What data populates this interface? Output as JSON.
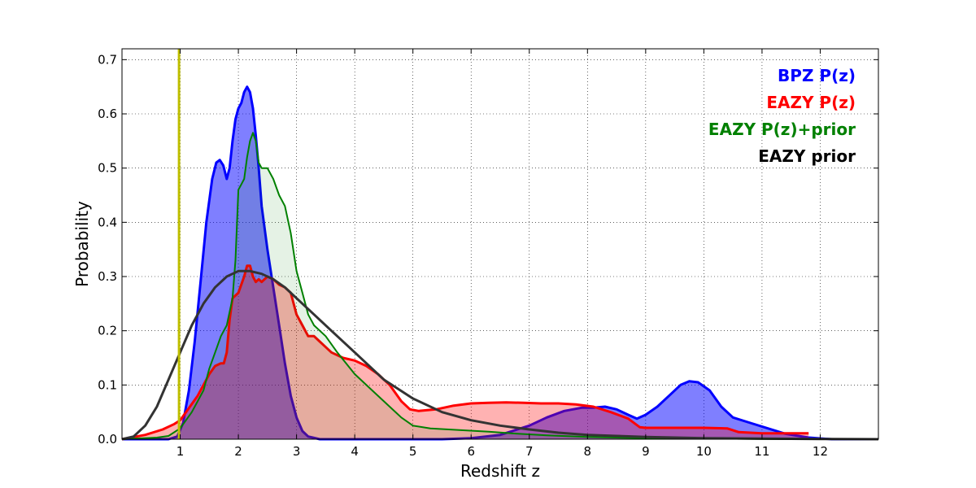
{
  "chart_data": {
    "type": "area",
    "xlabel": "Redshift z",
    "ylabel": "Probability",
    "xlim": [
      0,
      13
    ],
    "ylim": [
      0,
      0.72
    ],
    "xticks": [
      1,
      2,
      3,
      4,
      5,
      6,
      7,
      8,
      9,
      10,
      11,
      12
    ],
    "yticks": [
      0.0,
      0.1,
      0.2,
      0.3,
      0.4,
      0.5,
      0.6,
      0.7
    ],
    "ytick_labels": [
      "0.0",
      "0.1",
      "0.2",
      "0.3",
      "0.4",
      "0.5",
      "0.6",
      "0.7"
    ],
    "grid": true,
    "legend_position": "top-right",
    "vertical_marker": {
      "x": 0.98,
      "color": "#bfbf00"
    },
    "series": [
      {
        "name": "BPZ P(z)",
        "color": "#0000ff",
        "fill": "#0000ff",
        "fill_opacity": 0.5,
        "line_width": 3,
        "points": [
          [
            0,
            0
          ],
          [
            0.8,
            0
          ],
          [
            0.95,
            0.005
          ],
          [
            1.05,
            0.03
          ],
          [
            1.15,
            0.09
          ],
          [
            1.25,
            0.18
          ],
          [
            1.35,
            0.29
          ],
          [
            1.45,
            0.4
          ],
          [
            1.55,
            0.48
          ],
          [
            1.62,
            0.51
          ],
          [
            1.68,
            0.515
          ],
          [
            1.74,
            0.505
          ],
          [
            1.8,
            0.48
          ],
          [
            1.85,
            0.5
          ],
          [
            1.9,
            0.55
          ],
          [
            1.95,
            0.59
          ],
          [
            2.0,
            0.61
          ],
          [
            2.05,
            0.62
          ],
          [
            2.1,
            0.64
          ],
          [
            2.15,
            0.65
          ],
          [
            2.2,
            0.64
          ],
          [
            2.25,
            0.61
          ],
          [
            2.3,
            0.56
          ],
          [
            2.35,
            0.5
          ],
          [
            2.4,
            0.43
          ],
          [
            2.5,
            0.35
          ],
          [
            2.6,
            0.28
          ],
          [
            2.7,
            0.21
          ],
          [
            2.8,
            0.14
          ],
          [
            2.9,
            0.08
          ],
          [
            3.0,
            0.04
          ],
          [
            3.1,
            0.015
          ],
          [
            3.2,
            0.005
          ],
          [
            3.4,
            0
          ],
          [
            5.5,
            0
          ],
          [
            6.0,
            0.002
          ],
          [
            6.5,
            0.008
          ],
          [
            7.0,
            0.025
          ],
          [
            7.3,
            0.04
          ],
          [
            7.6,
            0.052
          ],
          [
            7.9,
            0.058
          ],
          [
            8.1,
            0.058
          ],
          [
            8.3,
            0.06
          ],
          [
            8.5,
            0.055
          ],
          [
            8.7,
            0.045
          ],
          [
            8.85,
            0.038
          ],
          [
            9.0,
            0.045
          ],
          [
            9.2,
            0.06
          ],
          [
            9.4,
            0.08
          ],
          [
            9.6,
            0.1
          ],
          [
            9.75,
            0.107
          ],
          [
            9.9,
            0.105
          ],
          [
            10.1,
            0.09
          ],
          [
            10.3,
            0.06
          ],
          [
            10.5,
            0.04
          ],
          [
            10.8,
            0.03
          ],
          [
            11.1,
            0.02
          ],
          [
            11.4,
            0.01
          ],
          [
            11.8,
            0.003
          ],
          [
            12.2,
            0
          ],
          [
            13,
            0
          ]
        ]
      },
      {
        "name": "EAZY P(z)",
        "color": "#ff0000",
        "fill": "#ff0000",
        "fill_opacity": 0.3,
        "line_width": 3,
        "points": [
          [
            0,
            0
          ],
          [
            0.4,
            0.008
          ],
          [
            0.7,
            0.018
          ],
          [
            0.9,
            0.028
          ],
          [
            1.0,
            0.035
          ],
          [
            1.1,
            0.05
          ],
          [
            1.2,
            0.065
          ],
          [
            1.3,
            0.08
          ],
          [
            1.4,
            0.1
          ],
          [
            1.5,
            0.12
          ],
          [
            1.6,
            0.135
          ],
          [
            1.7,
            0.14
          ],
          [
            1.75,
            0.14
          ],
          [
            1.8,
            0.16
          ],
          [
            1.85,
            0.22
          ],
          [
            1.9,
            0.26
          ],
          [
            2.0,
            0.27
          ],
          [
            2.1,
            0.3
          ],
          [
            2.15,
            0.32
          ],
          [
            2.2,
            0.32
          ],
          [
            2.25,
            0.3
          ],
          [
            2.3,
            0.29
          ],
          [
            2.35,
            0.295
          ],
          [
            2.4,
            0.29
          ],
          [
            2.5,
            0.3
          ],
          [
            2.6,
            0.295
          ],
          [
            2.7,
            0.285
          ],
          [
            2.8,
            0.28
          ],
          [
            2.9,
            0.27
          ],
          [
            3.0,
            0.23
          ],
          [
            3.1,
            0.21
          ],
          [
            3.2,
            0.19
          ],
          [
            3.3,
            0.19
          ],
          [
            3.4,
            0.18
          ],
          [
            3.5,
            0.17
          ],
          [
            3.6,
            0.16
          ],
          [
            3.8,
            0.15
          ],
          [
            4.0,
            0.145
          ],
          [
            4.2,
            0.135
          ],
          [
            4.4,
            0.12
          ],
          [
            4.6,
            0.1
          ],
          [
            4.8,
            0.07
          ],
          [
            4.95,
            0.055
          ],
          [
            5.1,
            0.052
          ],
          [
            5.4,
            0.055
          ],
          [
            5.7,
            0.062
          ],
          [
            6.0,
            0.066
          ],
          [
            6.3,
            0.067
          ],
          [
            6.6,
            0.068
          ],
          [
            6.9,
            0.067
          ],
          [
            7.2,
            0.066
          ],
          [
            7.5,
            0.066
          ],
          [
            7.8,
            0.064
          ],
          [
            8.1,
            0.06
          ],
          [
            8.4,
            0.05
          ],
          [
            8.7,
            0.038
          ],
          [
            8.9,
            0.022
          ],
          [
            9.0,
            0.021
          ],
          [
            9.5,
            0.021
          ],
          [
            10.0,
            0.021
          ],
          [
            10.4,
            0.02
          ],
          [
            10.6,
            0.013
          ],
          [
            11.0,
            0.011
          ],
          [
            11.5,
            0.011
          ],
          [
            11.8,
            0.011
          ]
        ]
      },
      {
        "name": "EAZY P(z)+prior",
        "color": "#008000",
        "fill": "#008000",
        "fill_opacity": 0.1,
        "line_width": 2,
        "points": [
          [
            0,
            0
          ],
          [
            0.6,
            0.003
          ],
          [
            0.8,
            0.006
          ],
          [
            1.0,
            0.02
          ],
          [
            1.2,
            0.05
          ],
          [
            1.4,
            0.09
          ],
          [
            1.5,
            0.13
          ],
          [
            1.6,
            0.16
          ],
          [
            1.7,
            0.19
          ],
          [
            1.8,
            0.21
          ],
          [
            1.9,
            0.26
          ],
          [
            1.95,
            0.33
          ],
          [
            2.0,
            0.46
          ],
          [
            2.05,
            0.47
          ],
          [
            2.1,
            0.48
          ],
          [
            2.15,
            0.52
          ],
          [
            2.2,
            0.55
          ],
          [
            2.25,
            0.565
          ],
          [
            2.3,
            0.55
          ],
          [
            2.35,
            0.51
          ],
          [
            2.4,
            0.5
          ],
          [
            2.5,
            0.5
          ],
          [
            2.6,
            0.48
          ],
          [
            2.7,
            0.45
          ],
          [
            2.8,
            0.43
          ],
          [
            2.9,
            0.38
          ],
          [
            3.0,
            0.31
          ],
          [
            3.1,
            0.27
          ],
          [
            3.2,
            0.23
          ],
          [
            3.3,
            0.21
          ],
          [
            3.5,
            0.19
          ],
          [
            3.7,
            0.16
          ],
          [
            4.0,
            0.12
          ],
          [
            4.3,
            0.09
          ],
          [
            4.6,
            0.06
          ],
          [
            4.8,
            0.04
          ],
          [
            5.0,
            0.025
          ],
          [
            5.3,
            0.02
          ],
          [
            5.8,
            0.017
          ],
          [
            6.3,
            0.014
          ],
          [
            6.8,
            0.01
          ],
          [
            7.3,
            0.007
          ],
          [
            8.0,
            0.004
          ],
          [
            9.0,
            0.002
          ],
          [
            10.0,
            0.001
          ],
          [
            11.0,
            0.0005
          ],
          [
            12.0,
            0
          ],
          [
            13,
            0
          ]
        ]
      },
      {
        "name": "EAZY prior",
        "color": "#333333",
        "fill": "none",
        "fill_opacity": 0,
        "line_width": 3,
        "points": [
          [
            0,
            0
          ],
          [
            0.2,
            0.005
          ],
          [
            0.4,
            0.025
          ],
          [
            0.6,
            0.06
          ],
          [
            0.8,
            0.11
          ],
          [
            1.0,
            0.16
          ],
          [
            1.2,
            0.21
          ],
          [
            1.4,
            0.25
          ],
          [
            1.6,
            0.28
          ],
          [
            1.8,
            0.3
          ],
          [
            2.0,
            0.31
          ],
          [
            2.2,
            0.31
          ],
          [
            2.4,
            0.305
          ],
          [
            2.6,
            0.295
          ],
          [
            2.8,
            0.28
          ],
          [
            3.0,
            0.26
          ],
          [
            3.3,
            0.23
          ],
          [
            3.6,
            0.2
          ],
          [
            4.0,
            0.16
          ],
          [
            4.5,
            0.11
          ],
          [
            5.0,
            0.075
          ],
          [
            5.5,
            0.05
          ],
          [
            6.0,
            0.035
          ],
          [
            6.5,
            0.025
          ],
          [
            7.0,
            0.018
          ],
          [
            7.5,
            0.012
          ],
          [
            8.0,
            0.008
          ],
          [
            8.5,
            0.006
          ],
          [
            9.0,
            0.004
          ],
          [
            10.0,
            0.002
          ],
          [
            11.0,
            0.001
          ],
          [
            12.0,
            0.0005
          ],
          [
            13,
            0
          ]
        ]
      }
    ],
    "legend": [
      {
        "label": "BPZ P(z)",
        "color": "#0000ff"
      },
      {
        "label": "EAZY P(z)",
        "color": "#ff0000"
      },
      {
        "label": "EAZY P(z)+prior",
        "color": "#008000"
      },
      {
        "label": "EAZY prior",
        "color": "#000000"
      }
    ]
  }
}
